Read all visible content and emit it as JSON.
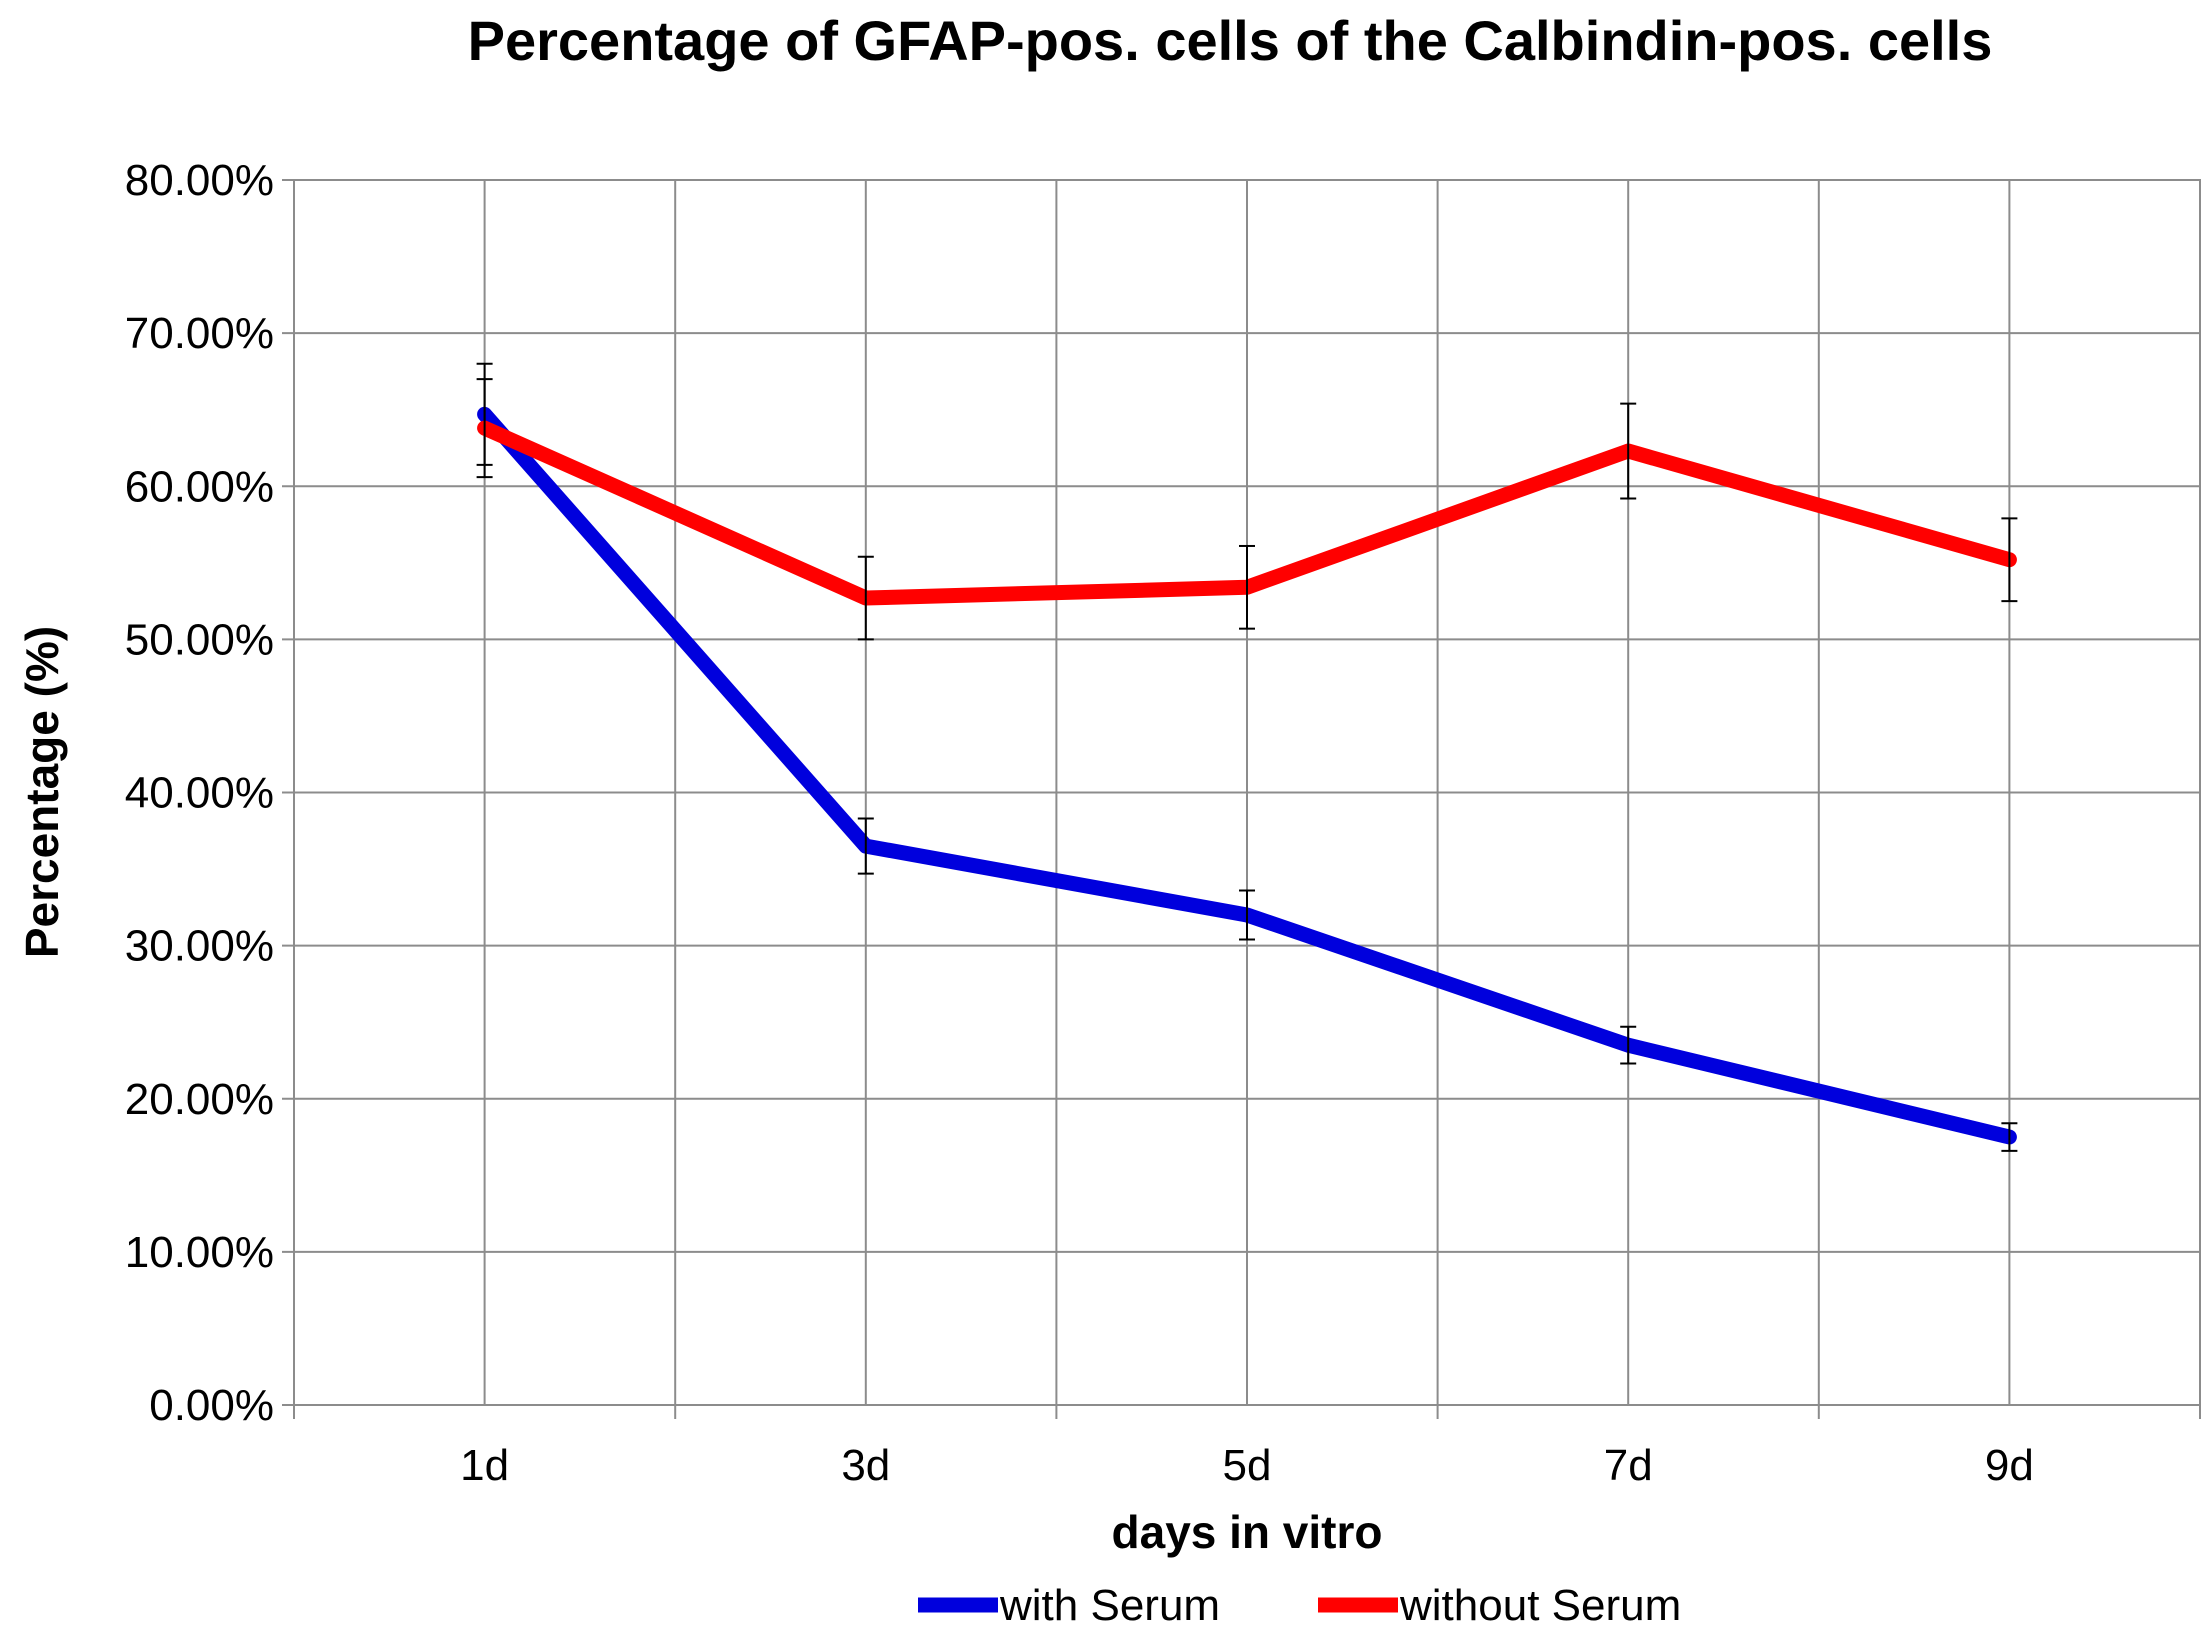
{
  "chart_data": {
    "type": "line",
    "title": "Percentage of GFAP-pos. cells of the Calbindin-pos. cells",
    "xlabel": "days in vitro",
    "ylabel": "Percentage (%)",
    "categories": [
      "1d",
      "3d",
      "5d",
      "7d",
      "9d"
    ],
    "ylim": [
      0,
      80
    ],
    "ytick_values": [
      0,
      10,
      20,
      30,
      40,
      50,
      60,
      70,
      80
    ],
    "ytick_labels": [
      "0.00%",
      "10.00%",
      "20.00%",
      "30.00%",
      "40.00%",
      "50.00%",
      "60.00%",
      "70.00%",
      "80.00%"
    ],
    "grid": true,
    "legend_position": "bottom",
    "series": [
      {
        "name": "with Serum",
        "color": "#0000dd",
        "values": [
          64.7,
          36.5,
          32.0,
          23.5,
          17.5
        ],
        "errors": [
          3.3,
          1.8,
          1.6,
          1.2,
          0.9
        ]
      },
      {
        "name": "without Serum",
        "color": "#ff0000",
        "values": [
          63.8,
          52.7,
          53.4,
          62.3,
          55.2
        ],
        "errors": [
          3.2,
          2.7,
          2.7,
          3.1,
          2.7
        ]
      }
    ]
  }
}
